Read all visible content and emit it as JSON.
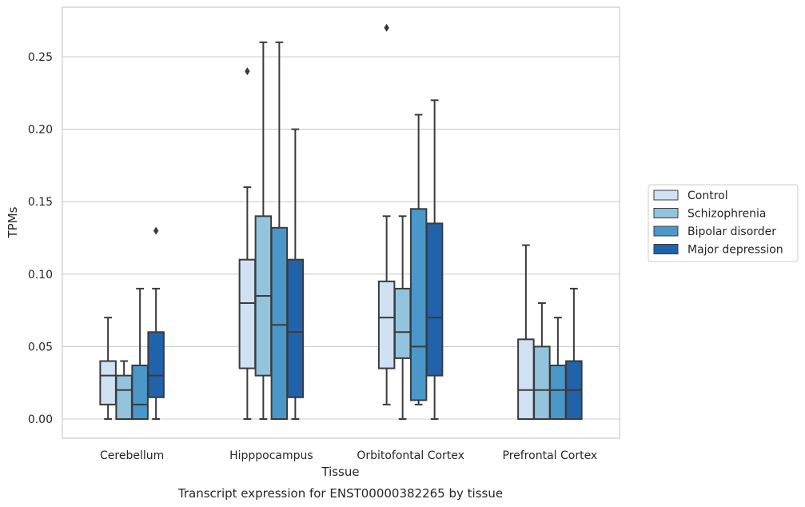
{
  "chart_data": {
    "type": "boxplot",
    "caption": "Transcript expression for ENST00000382265 by tissue",
    "xlabel": "Tissue",
    "ylabel": "TPMs",
    "ylim": [
      -0.013,
      0.284
    ],
    "yticks": [
      0.0,
      0.05,
      0.1,
      0.15,
      0.2,
      0.25
    ],
    "ytick_labels": [
      "0.00",
      "0.05",
      "0.10",
      "0.15",
      "0.20",
      "0.25"
    ],
    "grid": "horizontal",
    "legend_position": "right",
    "categories": [
      "Cerebellum",
      "Hipppocampus",
      "Orbitofontal Cortex",
      "Prefrontal Cortex"
    ],
    "series": [
      {
        "name": "Control",
        "color": "#cfe1f2",
        "boxes": [
          {
            "whisker_low": 0.0,
            "q1": 0.01,
            "median": 0.03,
            "q3": 0.04,
            "whisker_high": 0.07,
            "outliers": []
          },
          {
            "whisker_low": 0.0,
            "q1": 0.035,
            "median": 0.08,
            "q3": 0.11,
            "whisker_high": 0.16,
            "outliers": [
              0.24
            ]
          },
          {
            "whisker_low": 0.01,
            "q1": 0.035,
            "median": 0.07,
            "q3": 0.095,
            "whisker_high": 0.14,
            "outliers": [
              0.27
            ]
          },
          {
            "whisker_low": 0.0,
            "q1": 0.0,
            "median": 0.02,
            "q3": 0.055,
            "whisker_high": 0.12,
            "outliers": []
          }
        ]
      },
      {
        "name": "Schizophrenia",
        "color": "#93c4de",
        "boxes": [
          {
            "whisker_low": 0.0,
            "q1": 0.0,
            "median": 0.02,
            "q3": 0.03,
            "whisker_high": 0.04,
            "outliers": []
          },
          {
            "whisker_low": 0.0,
            "q1": 0.03,
            "median": 0.085,
            "q3": 0.14,
            "whisker_high": 0.26,
            "outliers": []
          },
          {
            "whisker_low": 0.0,
            "q1": 0.042,
            "median": 0.06,
            "q3": 0.09,
            "whisker_high": 0.14,
            "outliers": []
          },
          {
            "whisker_low": 0.0,
            "q1": 0.0,
            "median": 0.02,
            "q3": 0.05,
            "whisker_high": 0.08,
            "outliers": []
          }
        ]
      },
      {
        "name": "Bipolar disorder",
        "color": "#4a98c9",
        "boxes": [
          {
            "whisker_low": 0.0,
            "q1": 0.0,
            "median": 0.01,
            "q3": 0.037,
            "whisker_high": 0.09,
            "outliers": []
          },
          {
            "whisker_low": 0.0,
            "q1": 0.0,
            "median": 0.065,
            "q3": 0.132,
            "whisker_high": 0.26,
            "outliers": []
          },
          {
            "whisker_low": 0.01,
            "q1": 0.013,
            "median": 0.05,
            "q3": 0.145,
            "whisker_high": 0.21,
            "outliers": []
          },
          {
            "whisker_low": 0.0,
            "q1": 0.0,
            "median": 0.02,
            "q3": 0.037,
            "whisker_high": 0.07,
            "outliers": []
          }
        ]
      },
      {
        "name": "Major depression",
        "color": "#2163aa",
        "boxes": [
          {
            "whisker_low": 0.0,
            "q1": 0.015,
            "median": 0.03,
            "q3": 0.06,
            "whisker_high": 0.09,
            "outliers": [
              0.13
            ]
          },
          {
            "whisker_low": 0.0,
            "q1": 0.015,
            "median": 0.06,
            "q3": 0.11,
            "whisker_high": 0.2,
            "outliers": []
          },
          {
            "whisker_low": 0.0,
            "q1": 0.03,
            "median": 0.07,
            "q3": 0.135,
            "whisker_high": 0.22,
            "outliers": []
          },
          {
            "whisker_low": 0.0,
            "q1": 0.0,
            "median": 0.02,
            "q3": 0.04,
            "whisker_high": 0.09,
            "outliers": []
          }
        ]
      }
    ]
  }
}
